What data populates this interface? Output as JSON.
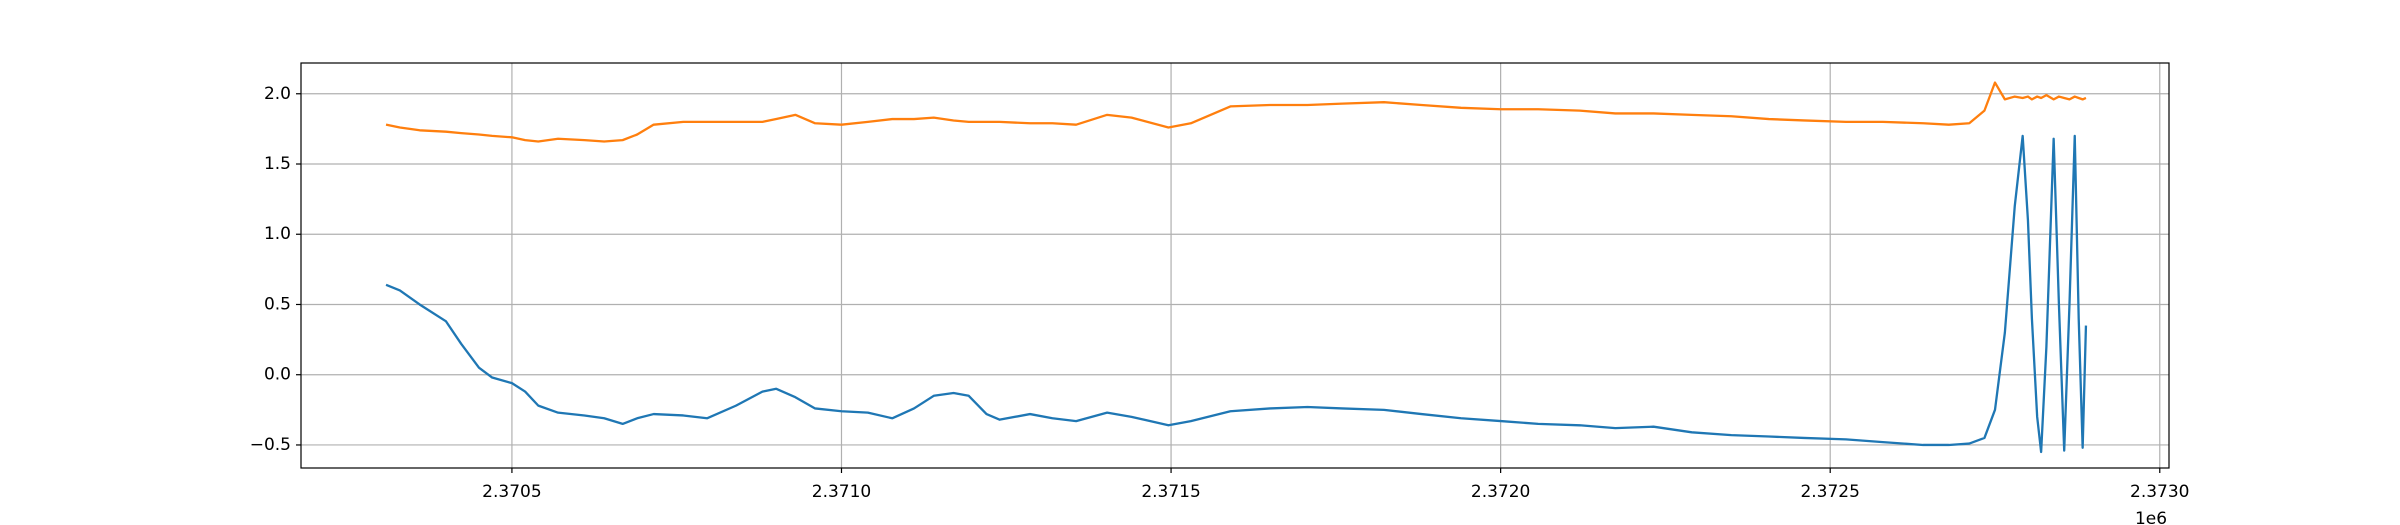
{
  "chart_data": {
    "type": "line",
    "x": [
      2370309,
      2370330,
      2370360,
      2370400,
      2370423,
      2370450,
      2370470,
      2370500,
      2370520,
      2370540,
      2370570,
      2370610,
      2370640,
      2370668,
      2370690,
      2370715,
      2370760,
      2370796,
      2370840,
      2370880,
      2370901,
      2370930,
      2370960,
      2371000,
      2371040,
      2371077,
      2371110,
      2371140,
      2371170,
      2371193,
      2371220,
      2371240,
      2371286,
      2371320,
      2371356,
      2371403,
      2371440,
      2371496,
      2371530,
      2371590,
      2371650,
      2371707,
      2371760,
      2371823,
      2371880,
      2371940,
      2372000,
      2372057,
      2372120,
      2372174,
      2372232,
      2372290,
      2372350,
      2372407,
      2372460,
      2372524,
      2372580,
      2372641,
      2372680,
      2372711,
      2372734,
      2372750,
      2372765,
      2372780,
      2372792,
      2372800,
      2372806,
      2372814,
      2372820,
      2372828,
      2372839,
      2372847,
      2372855,
      2372863,
      2372871,
      2372877,
      2372883,
      2372888
    ],
    "series": [
      {
        "color": "#1f77b4",
        "values": [
          0.64,
          0.6,
          0.5,
          0.38,
          0.22,
          0.05,
          -0.02,
          -0.06,
          -0.12,
          -0.22,
          -0.27,
          -0.29,
          -0.31,
          -0.35,
          -0.31,
          -0.28,
          -0.29,
          -0.31,
          -0.22,
          -0.12,
          -0.1,
          -0.16,
          -0.24,
          -0.26,
          -0.27,
          -0.31,
          -0.24,
          -0.15,
          -0.13,
          -0.15,
          -0.28,
          -0.32,
          -0.28,
          -0.31,
          -0.33,
          -0.27,
          -0.3,
          -0.36,
          -0.33,
          -0.26,
          -0.24,
          -0.23,
          -0.24,
          -0.25,
          -0.28,
          -0.31,
          -0.33,
          -0.35,
          -0.36,
          -0.38,
          -0.37,
          -0.41,
          -0.43,
          -0.44,
          -0.45,
          -0.46,
          -0.48,
          -0.5,
          -0.5,
          -0.49,
          -0.45,
          -0.25,
          0.3,
          1.2,
          1.7,
          1.1,
          0.4,
          -0.3,
          -0.55,
          0.2,
          1.68,
          0.5,
          -0.54,
          0.5,
          1.7,
          0.4,
          -0.52,
          0.35
        ]
      },
      {
        "color": "#ff7f0e",
        "values": [
          1.78,
          1.76,
          1.74,
          1.73,
          1.72,
          1.71,
          1.7,
          1.69,
          1.67,
          1.66,
          1.68,
          1.67,
          1.66,
          1.67,
          1.71,
          1.78,
          1.8,
          1.8,
          1.8,
          1.8,
          1.82,
          1.85,
          1.79,
          1.78,
          1.8,
          1.82,
          1.82,
          1.83,
          1.81,
          1.8,
          1.8,
          1.8,
          1.79,
          1.79,
          1.78,
          1.85,
          1.83,
          1.76,
          1.79,
          1.91,
          1.92,
          1.92,
          1.93,
          1.94,
          1.92,
          1.9,
          1.89,
          1.89,
          1.88,
          1.86,
          1.86,
          1.85,
          1.84,
          1.82,
          1.81,
          1.8,
          1.8,
          1.79,
          1.78,
          1.79,
          1.88,
          2.08,
          1.96,
          1.98,
          1.97,
          1.98,
          1.96,
          1.98,
          1.97,
          1.99,
          1.96,
          1.98,
          1.97,
          1.96,
          1.98,
          1.97,
          1.96,
          1.97
        ]
      }
    ],
    "xlim": [
      2370180,
      2373014
    ],
    "xticks": [
      {
        "value": 2370500,
        "label": "2.3705"
      },
      {
        "value": 2371000,
        "label": "2.3710"
      },
      {
        "value": 2371500,
        "label": "2.3715"
      },
      {
        "value": 2372000,
        "label": "2.3720"
      },
      {
        "value": 2372500,
        "label": "2.3725"
      },
      {
        "value": 2373000,
        "label": "2.3730"
      }
    ],
    "x_offset_label": "1e6",
    "ylim": [
      -0.664,
      2.219
    ],
    "yticks": [
      {
        "value": -0.5,
        "label": "−0.5"
      },
      {
        "value": 0,
        "label": "0.0"
      },
      0.5,
      {
        "value": 1,
        "label": "1.0"
      },
      1.5,
      {
        "value": 2,
        "label": "2.0"
      }
    ],
    "grid": true
  }
}
